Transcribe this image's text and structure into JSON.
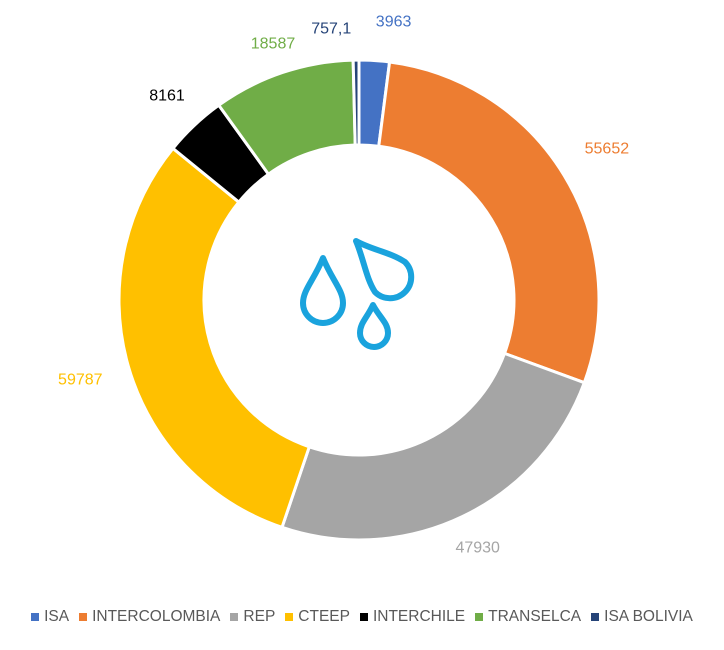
{
  "chart_data": {
    "type": "donut",
    "categories": [
      "ISA",
      "INTERCOLOMBIA",
      "REP",
      "CTEEP",
      "INTERCHILE",
      "TRANSELCA",
      "ISA BOLIVIA"
    ],
    "values": [
      3963,
      55652,
      47930,
      59787,
      8161,
      18587,
      757.1
    ],
    "value_labels": [
      "3963",
      "55652",
      "47930",
      "59787",
      "8161",
      "18587",
      "757,1"
    ],
    "colors": [
      "#4472C4",
      "#ED7D31",
      "#A5A5A5",
      "#FFC000",
      "#000000",
      "#70AD47",
      "#264478"
    ],
    "label_colors": [
      "#4472C4",
      "#ED7D31",
      "#A5A5A5",
      "#FFC000",
      "#000000",
      "#70AD47",
      "#264478"
    ],
    "legend_position": "bottom",
    "center_icon": "water-drops-icon",
    "center_icon_color": "#1AA3DD"
  }
}
